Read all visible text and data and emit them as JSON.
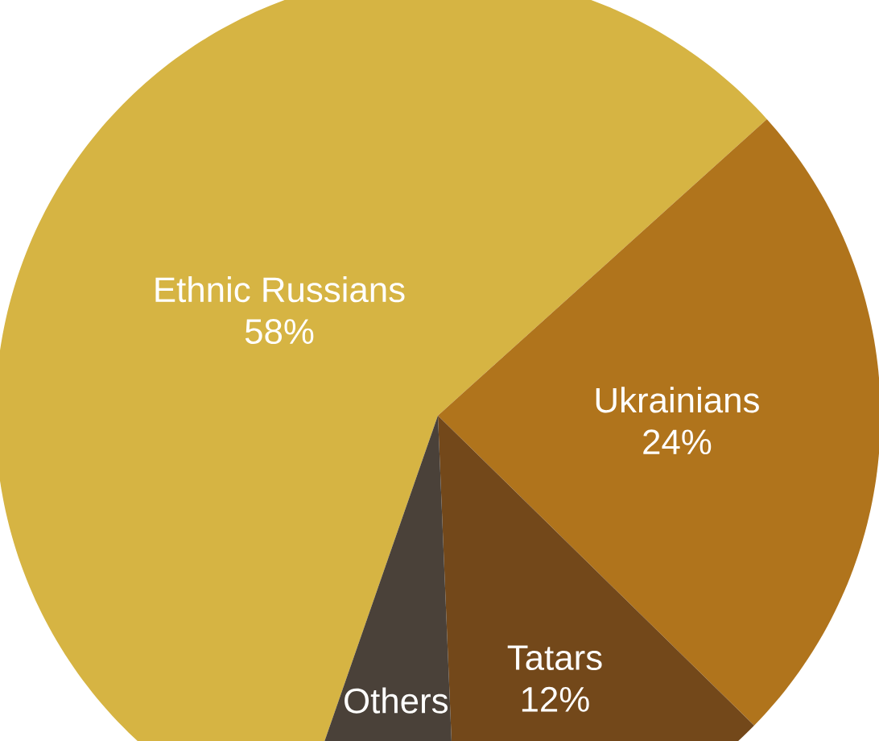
{
  "chart_data": {
    "type": "pie",
    "categories": [
      "Ethnic Russians",
      "Ukrainians",
      "Tatars",
      "Others"
    ],
    "values": [
      58,
      24,
      12,
      6
    ],
    "colors": [
      "#d6b443",
      "#b0741c",
      "#73481a",
      "#4a4139"
    ],
    "value_labels": [
      "58%",
      "24%",
      "12%",
      null
    ]
  }
}
